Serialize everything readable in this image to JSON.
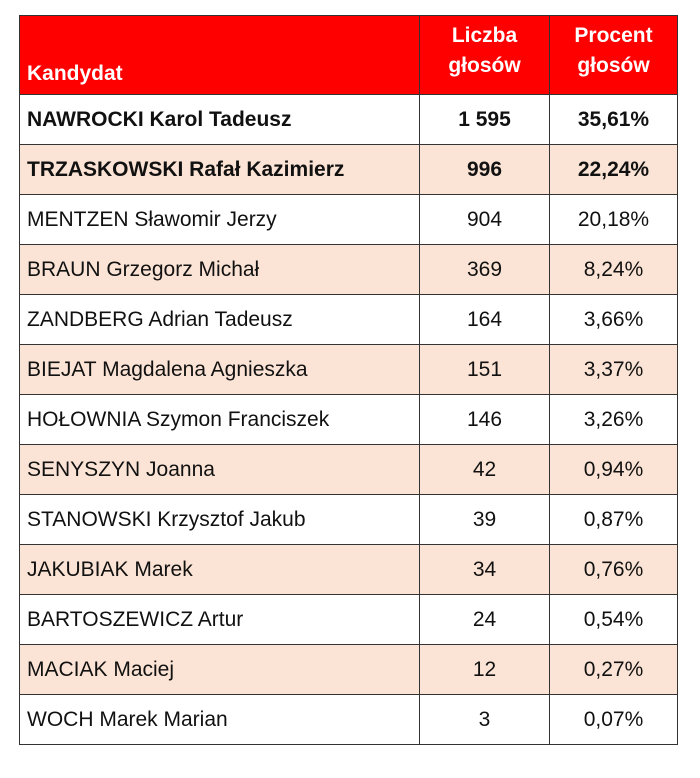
{
  "headers": {
    "candidate": "Kandydat",
    "votes_line1": "Liczba",
    "votes_line2": "głosów",
    "percent_line1": "Procent",
    "percent_line2": "głosów"
  },
  "rows": [
    {
      "name": "NAWROCKI Karol Tadeusz",
      "votes": "1 595",
      "percent": "35,61%",
      "bold": true
    },
    {
      "name": "TRZASKOWSKI Rafał Kazimierz",
      "votes": "996",
      "percent": "22,24%",
      "bold": true
    },
    {
      "name": "MENTZEN Sławomir Jerzy",
      "votes": "904",
      "percent": "20,18%",
      "bold": false
    },
    {
      "name": "BRAUN Grzegorz Michał",
      "votes": "369",
      "percent": "8,24%",
      "bold": false
    },
    {
      "name": "ZANDBERG Adrian Tadeusz",
      "votes": "164",
      "percent": "3,66%",
      "bold": false
    },
    {
      "name": "BIEJAT Magdalena Agnieszka",
      "votes": "151",
      "percent": "3,37%",
      "bold": false
    },
    {
      "name": "HOŁOWNIA Szymon Franciszek",
      "votes": "146",
      "percent": "3,26%",
      "bold": false
    },
    {
      "name": "SENYSZYN Joanna",
      "votes": "42",
      "percent": "0,94%",
      "bold": false
    },
    {
      "name": "STANOWSKI Krzysztof Jakub",
      "votes": "39",
      "percent": "0,87%",
      "bold": false
    },
    {
      "name": "JAKUBIAK Marek",
      "votes": "34",
      "percent": "0,76%",
      "bold": false
    },
    {
      "name": "BARTOSZEWICZ Artur",
      "votes": "24",
      "percent": "0,54%",
      "bold": false
    },
    {
      "name": "MACIAK Maciej",
      "votes": "12",
      "percent": "0,27%",
      "bold": false
    },
    {
      "name": "WOCH Marek Marian",
      "votes": "3",
      "percent": "0,07%",
      "bold": false
    }
  ],
  "colors": {
    "header_bg": "#ff0000",
    "header_text": "#ffffff",
    "stripe_bg": "#fbe4d5",
    "border": "#333333"
  }
}
